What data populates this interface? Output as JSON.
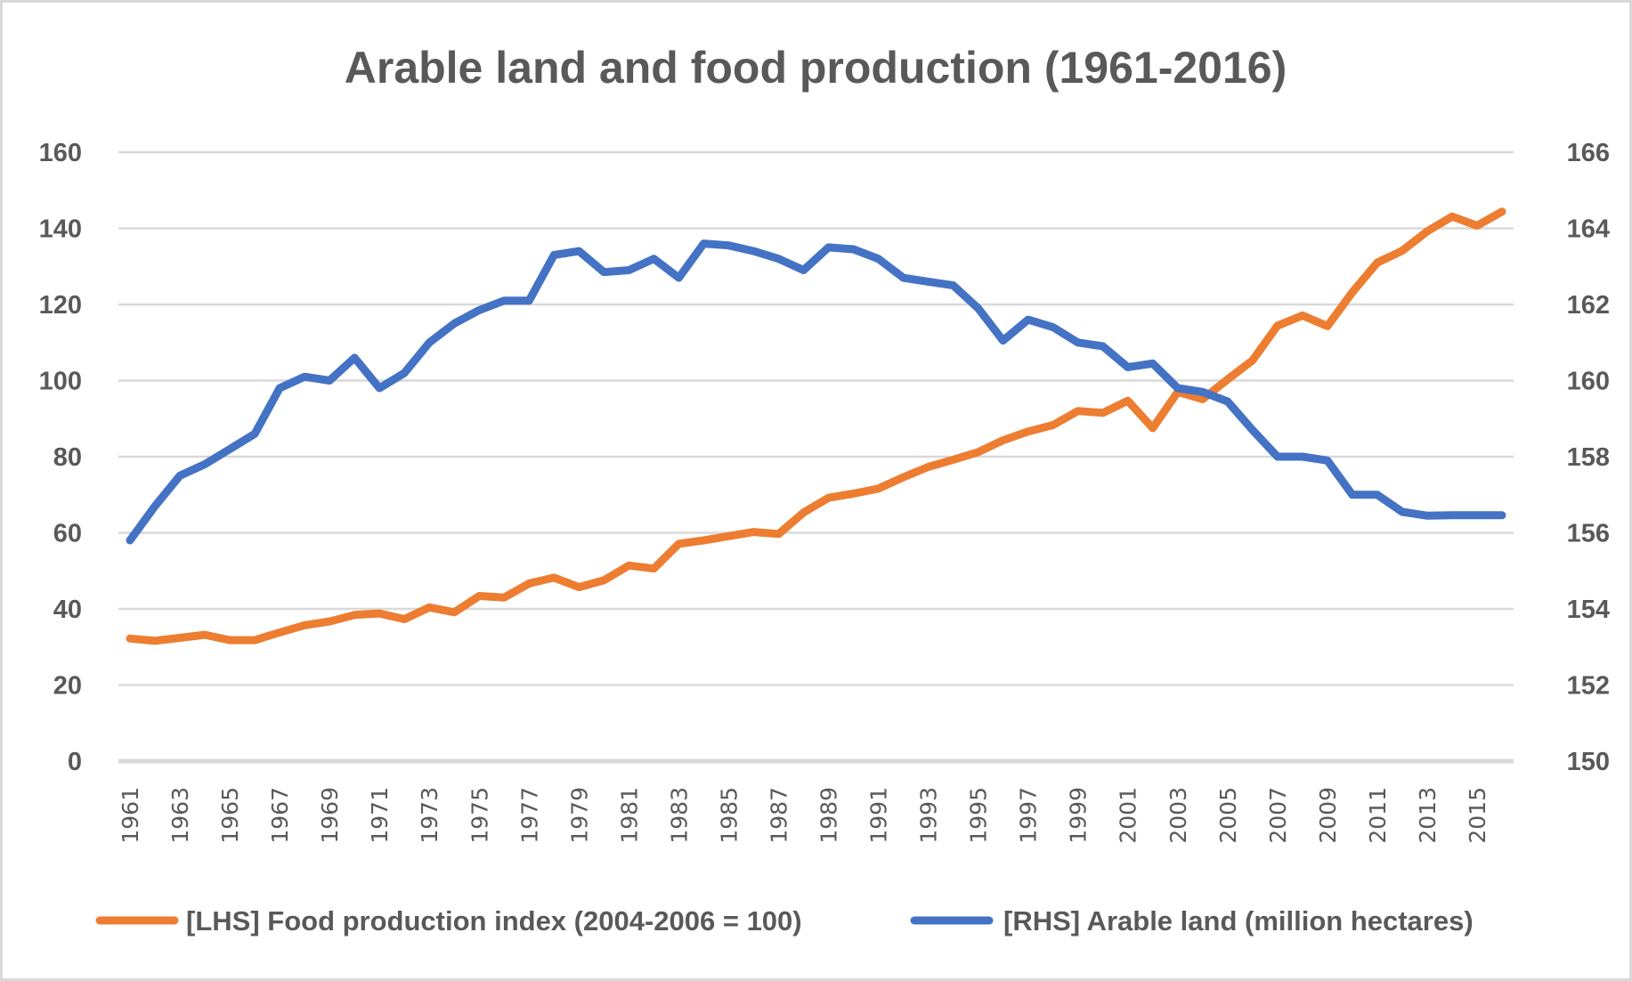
{
  "chart_data": {
    "type": "line",
    "title": "Arable land and food production (1961-2016)",
    "xlabel": "",
    "ylabel_left": "",
    "ylabel_right": "",
    "grid": true,
    "legend_position": "bottom",
    "x": [
      1961,
      1962,
      1963,
      1964,
      1965,
      1966,
      1967,
      1968,
      1969,
      1970,
      1971,
      1972,
      1973,
      1974,
      1975,
      1976,
      1977,
      1978,
      1979,
      1980,
      1981,
      1982,
      1983,
      1984,
      1985,
      1986,
      1987,
      1988,
      1989,
      1990,
      1991,
      1992,
      1993,
      1994,
      1995,
      1996,
      1997,
      1998,
      1999,
      2000,
      2001,
      2002,
      2003,
      2004,
      2005,
      2006,
      2007,
      2008,
      2009,
      2010,
      2011,
      2012,
      2013,
      2014,
      2015,
      2016
    ],
    "x_tick_labels": [
      "1961",
      "1963",
      "1965",
      "1967",
      "1969",
      "1971",
      "1973",
      "1975",
      "1977",
      "1979",
      "1981",
      "1983",
      "1985",
      "1987",
      "1989",
      "1991",
      "1993",
      "1995",
      "1997",
      "1999",
      "2001",
      "2003",
      "2005",
      "2007",
      "2009",
      "2011",
      "2013",
      "2015"
    ],
    "left_axis": {
      "ylim": [
        0,
        160
      ],
      "tick_labels": [
        "0",
        "20",
        "40",
        "60",
        "80",
        "100",
        "120",
        "140",
        "160"
      ],
      "ticks": [
        0,
        20,
        40,
        60,
        80,
        100,
        120,
        140,
        160
      ]
    },
    "right_axis": {
      "ylim": [
        150,
        166
      ],
      "tick_labels": [
        "150",
        "152",
        "154",
        "156",
        "158",
        "160",
        "162",
        "164",
        "166"
      ],
      "ticks": [
        150,
        152,
        154,
        156,
        158,
        160,
        162,
        164,
        166
      ]
    },
    "series": [
      {
        "name": "[LHS] Food production index (2004-2006 = 100)",
        "axis": "left",
        "color": "#ED7D31",
        "values": [
          32.2,
          31.6,
          32.4,
          33.2,
          31.8,
          31.8,
          33.8,
          35.7,
          36.7,
          38.4,
          38.8,
          37.3,
          40.4,
          39.1,
          43.4,
          43.0,
          46.7,
          48.2,
          45.7,
          47.5,
          51.4,
          50.6,
          57.1,
          58.0,
          59.1,
          60.2,
          59.7,
          65.3,
          69.2,
          70.3,
          71.6,
          74.6,
          77.3,
          79.2,
          81.2,
          84.3,
          86.6,
          88.3,
          92.0,
          91.5,
          94.7,
          87.5,
          97.0,
          95.1,
          100.3,
          105.3,
          114.4,
          117.1,
          114.3,
          123.2,
          131.0,
          134.1,
          139.2,
          143.1,
          140.7,
          144.4
        ]
      },
      {
        "name": "[RHS] Arable land (million hectares)",
        "axis": "right",
        "color": "#4472C4",
        "values": [
          155.8,
          156.7,
          157.5,
          157.8,
          158.2,
          158.6,
          159.8,
          160.1,
          160.0,
          160.6,
          159.8,
          160.2,
          161.0,
          161.5,
          161.85,
          162.1,
          162.1,
          163.3,
          163.4,
          162.85,
          162.9,
          163.2,
          162.7,
          163.6,
          163.55,
          163.4,
          163.2,
          162.9,
          163.5,
          163.45,
          163.2,
          162.7,
          162.6,
          162.5,
          161.9,
          161.05,
          161.6,
          161.4,
          161.0,
          160.9,
          160.35,
          160.45,
          159.8,
          159.7,
          159.45,
          158.7,
          158.0,
          158.0,
          157.9,
          157.0,
          157.0,
          156.55,
          156.45,
          156.46,
          156.46,
          156.46
        ]
      }
    ]
  }
}
